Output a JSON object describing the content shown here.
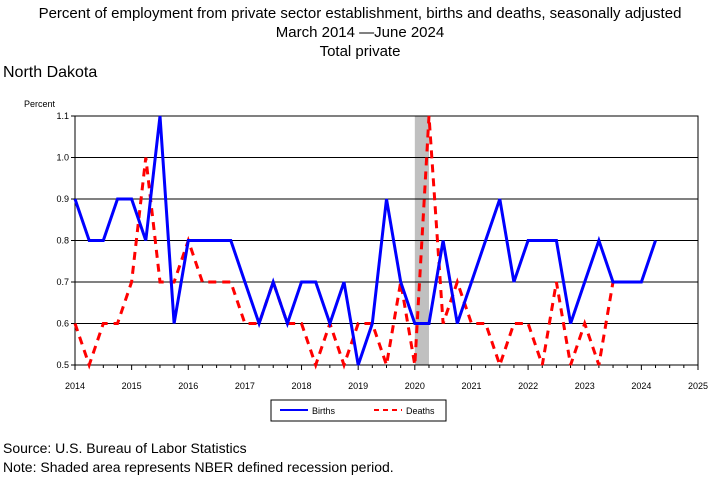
{
  "title_lines": [
    "Percent of employment from private sector establishment, births and deaths, seasonally adjusted",
    "March 2014 —June 2024",
    "Total private"
  ],
  "region": "North Dakota",
  "footer": {
    "source": "Source: U.S. Bureau of Labor Statistics",
    "note": "Note: Shaded area represents NBER defined recession period."
  },
  "chart_data": {
    "type": "line",
    "ylabel": "Percent",
    "ylim": [
      0.5,
      1.1
    ],
    "y_ticks": [
      "0.5",
      "0.6",
      "0.7",
      "0.8",
      "0.9",
      "1.0",
      "1.1"
    ],
    "xlim": [
      2014,
      2025
    ],
    "x_ticks": [
      "2014",
      "2015",
      "2016",
      "2017",
      "2018",
      "2019",
      "2020",
      "2021",
      "2022",
      "2023",
      "2024",
      "2025"
    ],
    "grid": "horizontal",
    "recession": {
      "start": 2020.0,
      "end": 2020.25,
      "color": "#c0c0c0"
    },
    "legend_position": "bottom",
    "series": [
      {
        "name": "Births",
        "color": "#0000ff",
        "dash": "solid",
        "x": [
          2014.0,
          2014.25,
          2014.5,
          2014.75,
          2015.0,
          2015.25,
          2015.5,
          2015.75,
          2016.0,
          2016.25,
          2016.5,
          2016.75,
          2017.0,
          2017.25,
          2017.5,
          2017.75,
          2018.0,
          2018.25,
          2018.5,
          2018.75,
          2019.0,
          2019.25,
          2019.5,
          2019.75,
          2020.0,
          2020.25,
          2020.5,
          2020.75,
          2021.0,
          2021.25,
          2021.5,
          2021.75,
          2022.0,
          2022.25,
          2022.5,
          2022.75,
          2023.0,
          2023.25,
          2023.5,
          2023.75,
          2024.0,
          2024.25
        ],
        "values": [
          0.9,
          0.8,
          0.8,
          0.9,
          0.9,
          0.8,
          1.1,
          0.6,
          0.8,
          0.8,
          0.8,
          0.8,
          0.7,
          0.6,
          0.7,
          0.6,
          0.7,
          0.7,
          0.6,
          0.7,
          0.5,
          0.6,
          0.9,
          0.7,
          0.6,
          0.6,
          0.8,
          0.6,
          0.7,
          0.8,
          0.9,
          0.7,
          0.8,
          0.8,
          0.8,
          0.6,
          0.7,
          0.8,
          0.7,
          0.7,
          0.7,
          0.8
        ]
      },
      {
        "name": "Deaths",
        "color": "#ff0000",
        "dash": "dashed",
        "x": [
          2014.0,
          2014.25,
          2014.5,
          2014.75,
          2015.0,
          2015.25,
          2015.5,
          2015.75,
          2016.0,
          2016.25,
          2016.5,
          2016.75,
          2017.0,
          2017.25,
          2017.5,
          2017.75,
          2018.0,
          2018.25,
          2018.5,
          2018.75,
          2019.0,
          2019.25,
          2019.5,
          2019.75,
          2020.0,
          2020.25,
          2020.5,
          2020.75,
          2021.0,
          2021.25,
          2021.5,
          2021.75,
          2022.0,
          2022.25,
          2022.5,
          2022.75,
          2023.0,
          2023.25,
          2023.5
        ],
        "values": [
          0.6,
          0.5,
          0.6,
          0.6,
          0.7,
          1.0,
          0.7,
          0.7,
          0.8,
          0.7,
          0.7,
          0.7,
          0.6,
          0.6,
          0.7,
          0.6,
          0.6,
          0.5,
          0.6,
          0.5,
          0.6,
          0.6,
          0.5,
          0.7,
          0.5,
          1.1,
          0.6,
          0.7,
          0.6,
          0.6,
          0.5,
          0.6,
          0.6,
          0.5,
          0.7,
          0.5,
          0.6,
          0.5,
          0.7
        ]
      }
    ]
  }
}
